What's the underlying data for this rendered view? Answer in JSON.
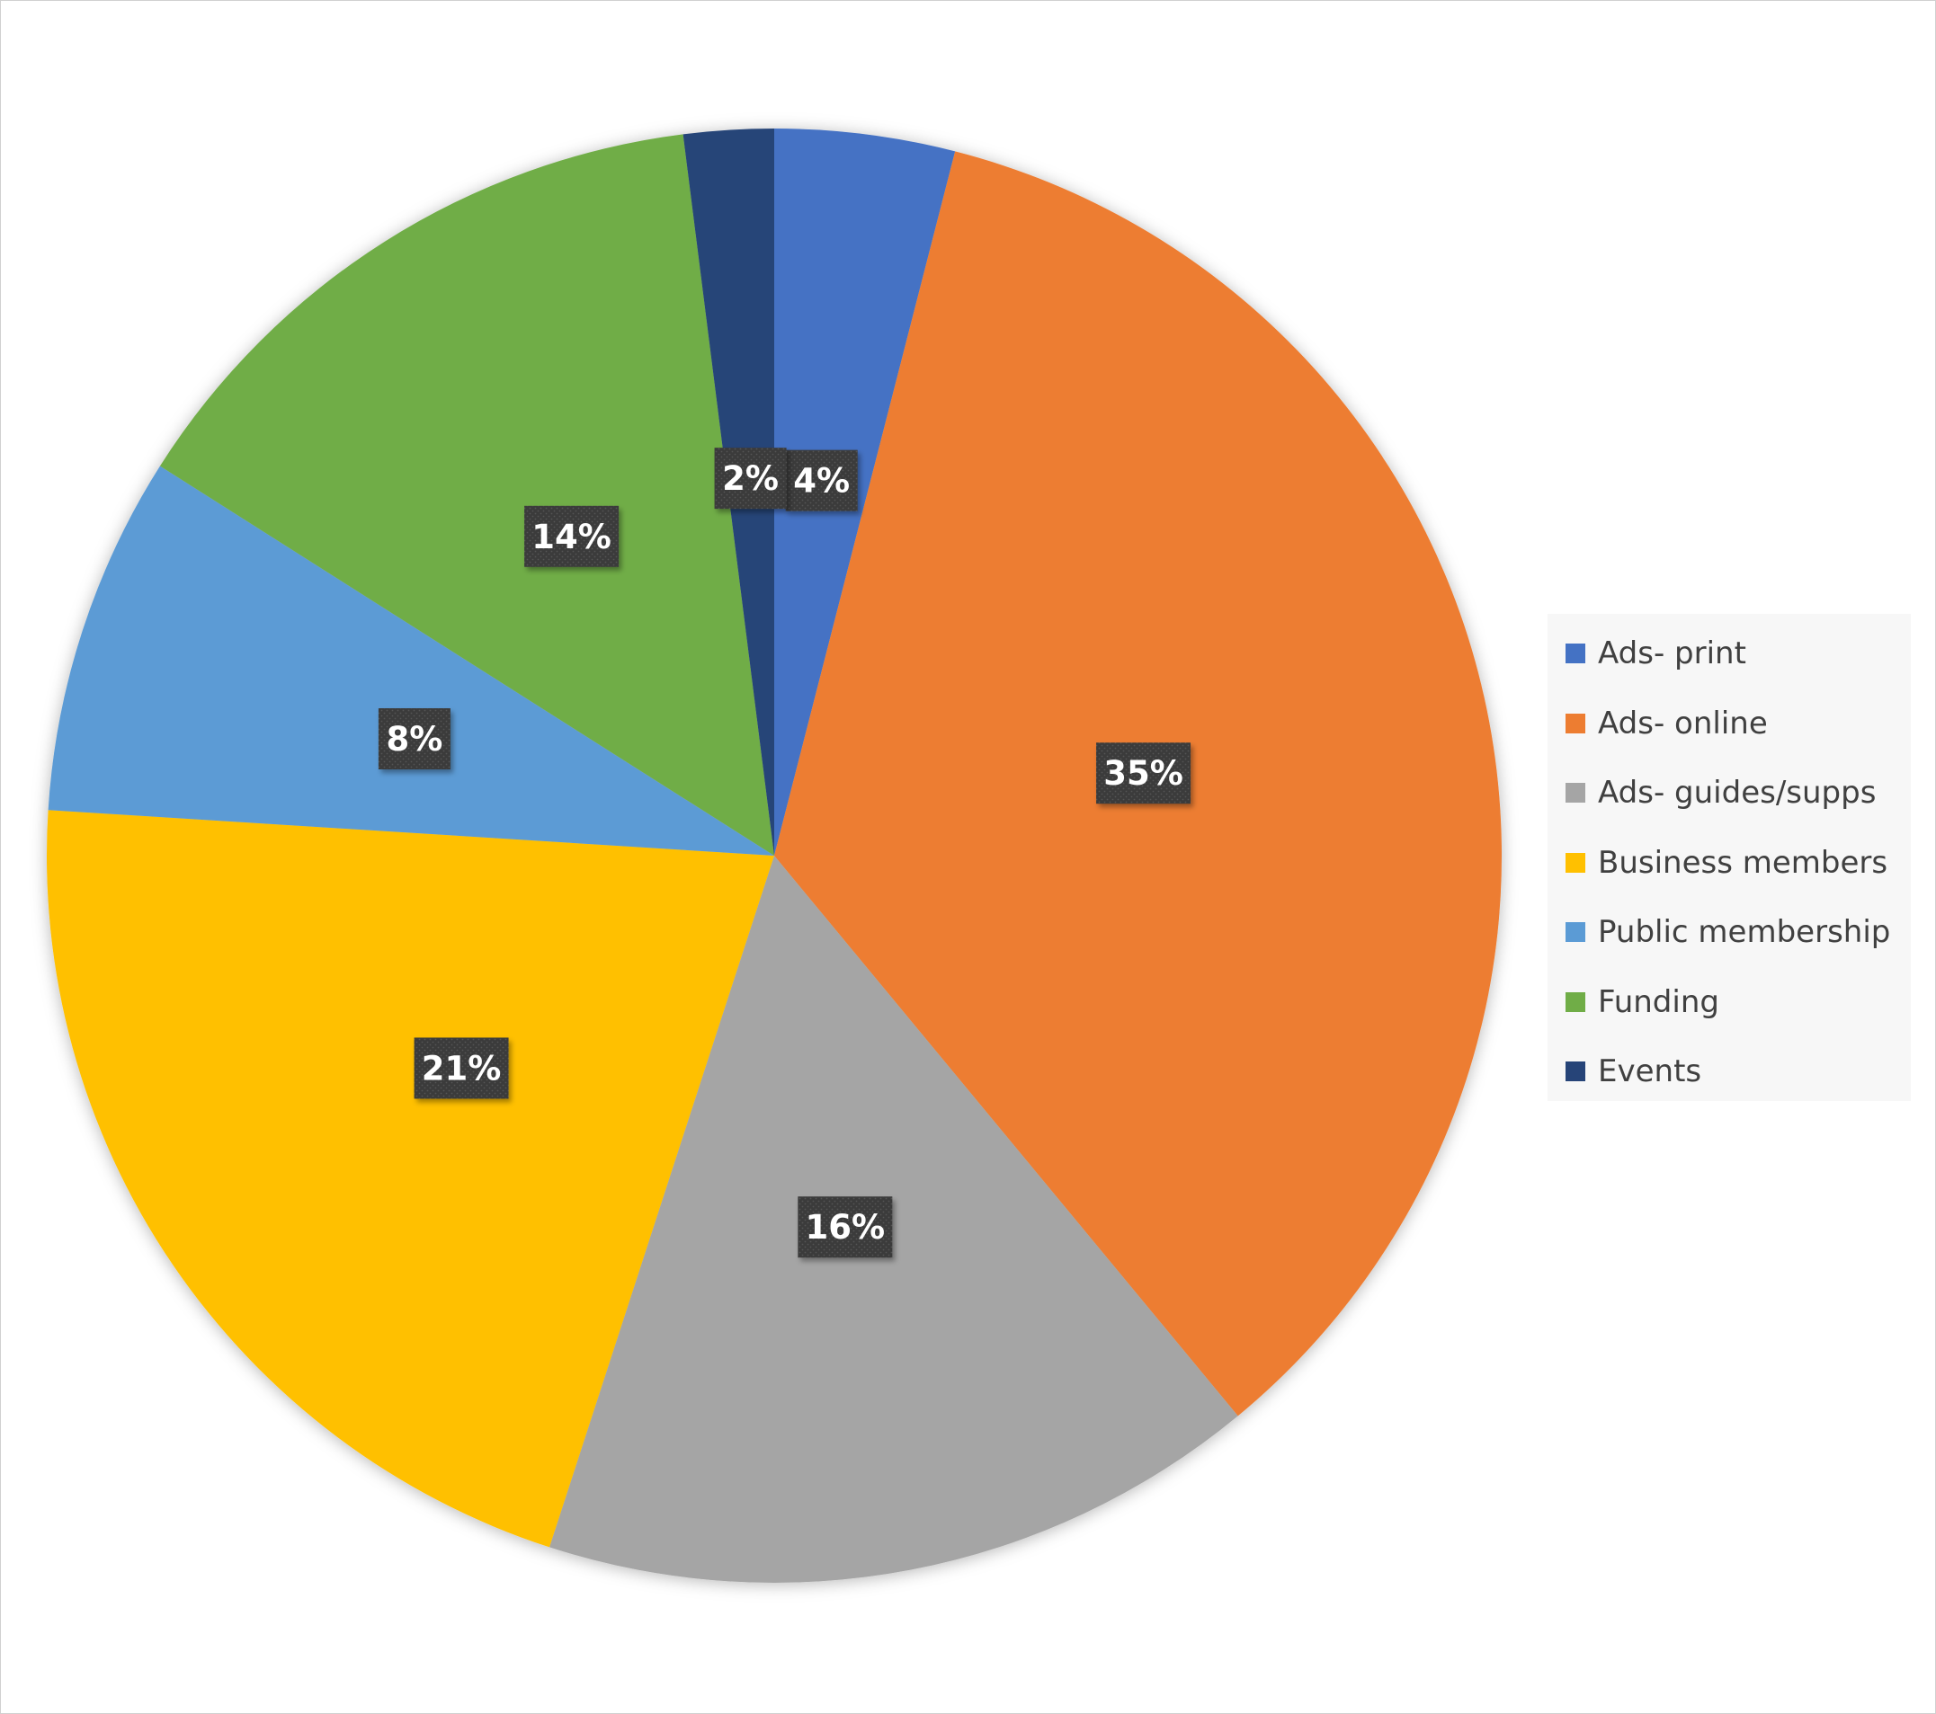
{
  "chart_data": {
    "type": "pie",
    "title": "",
    "categories": [
      "Ads- print",
      "Ads- online",
      "Ads- guides/supps",
      "Business members",
      "Public membership",
      "Funding",
      "Events"
    ],
    "values": [
      4,
      35,
      16,
      21,
      8,
      14,
      2
    ],
    "labels": [
      "4%",
      "35%",
      "16%",
      "21%",
      "8%",
      "14%",
      "2%"
    ],
    "colors": [
      "#4472C4",
      "#ED7D31",
      "#A5A5A5",
      "#FFC000",
      "#5B9BD5",
      "#70AD47",
      "#264478"
    ],
    "legend_position": "right",
    "start_angle_deg": 0,
    "direction": "clockwise",
    "data_label_style": "white bold text on dark patterned box"
  }
}
